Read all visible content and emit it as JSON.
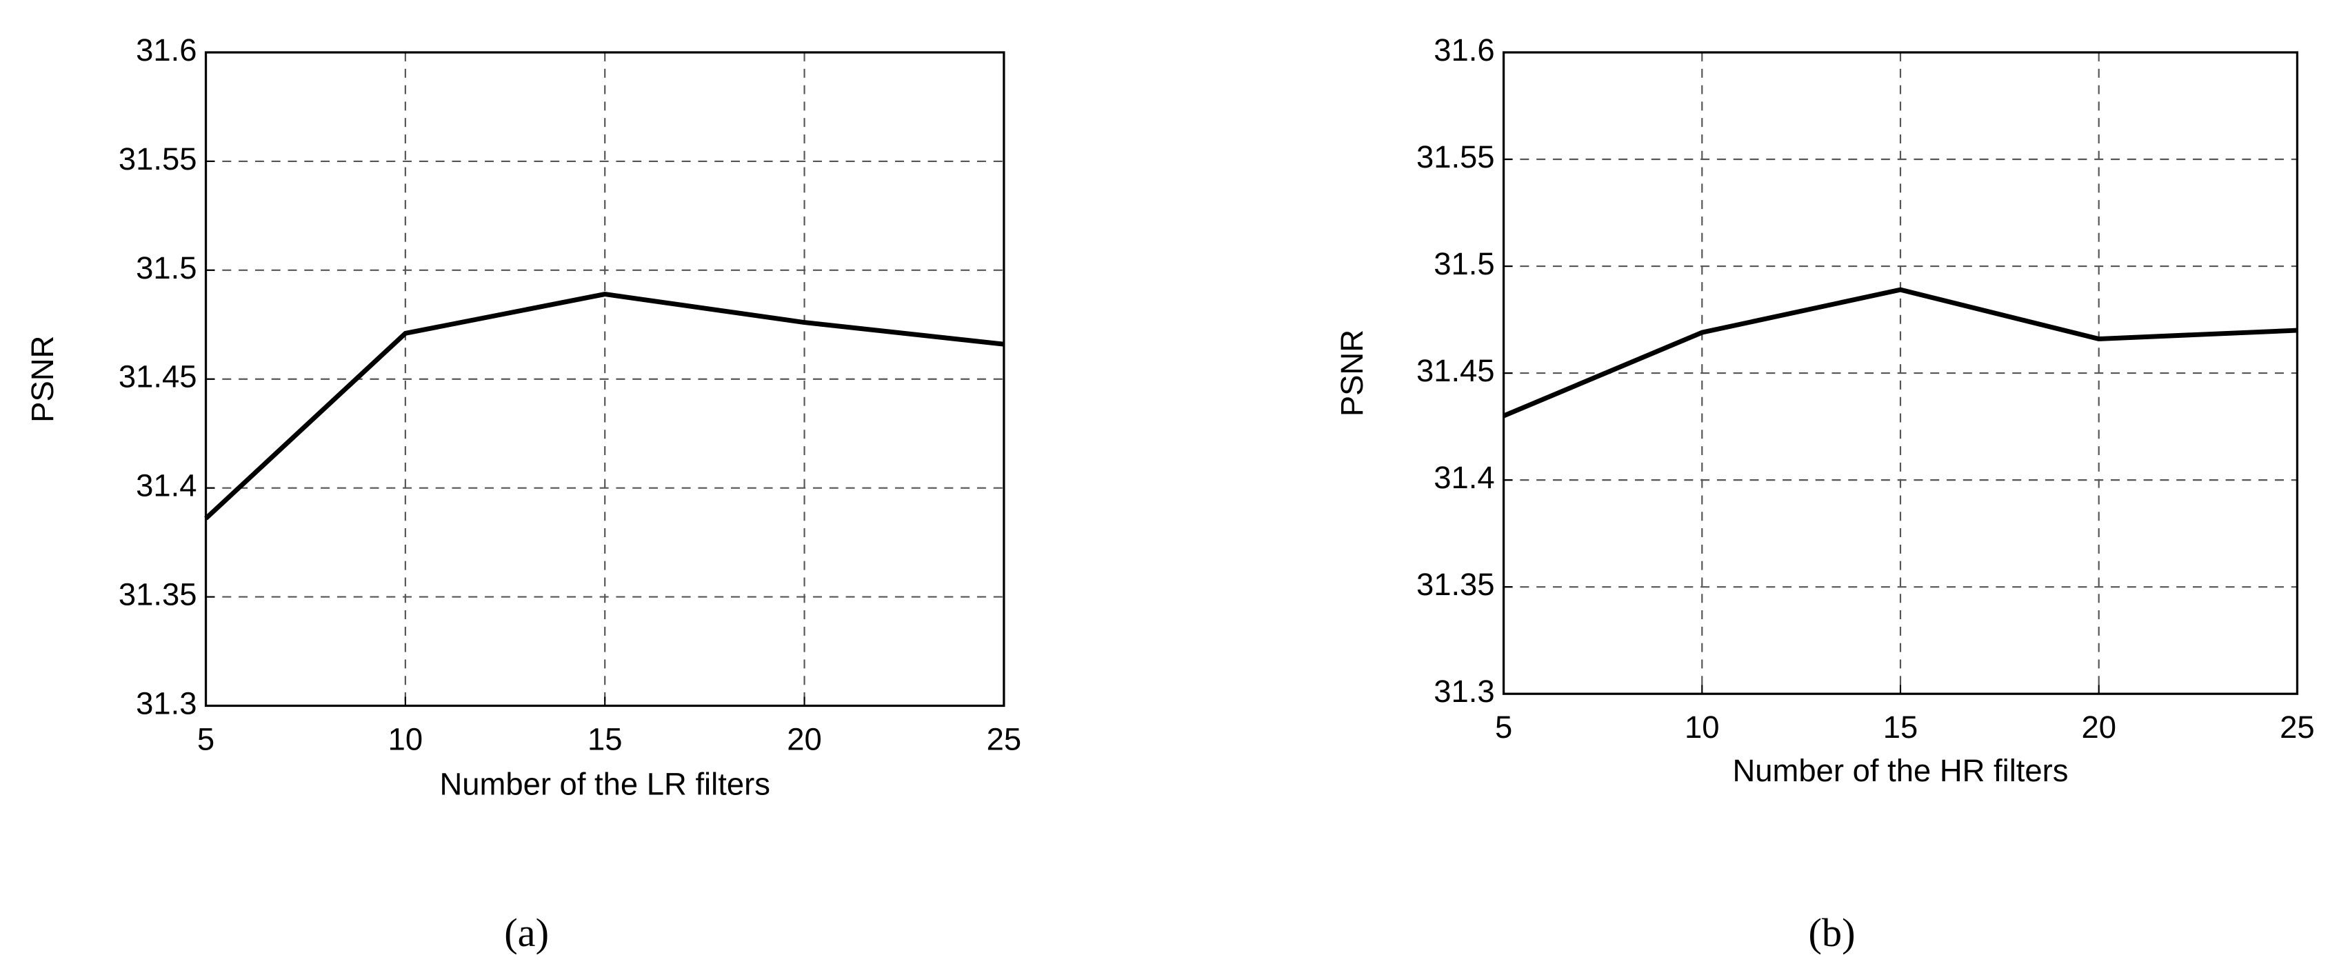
{
  "chart_data": [
    {
      "type": "line",
      "caption": "(a)",
      "xlabel": "Number of the LR filters",
      "ylabel": "PSNR",
      "x": [
        5,
        10,
        15,
        20,
        25
      ],
      "values": [
        31.386,
        31.471,
        31.489,
        31.476,
        31.466
      ],
      "color": "#000000",
      "xlim": [
        5,
        25
      ],
      "ylim": [
        31.3,
        31.6
      ],
      "xticks": [
        5,
        10,
        15,
        20,
        25
      ],
      "yticks": [
        31.3,
        31.35,
        31.4,
        31.45,
        31.5,
        31.55,
        31.6
      ],
      "grid": true
    },
    {
      "type": "line",
      "caption": "(b)",
      "xlabel": "Number of the HR filters",
      "ylabel": "PSNR",
      "x": [
        5,
        10,
        15,
        20,
        25
      ],
      "values": [
        31.43,
        31.469,
        31.489,
        31.466,
        31.47
      ],
      "color": "#000000",
      "xlim": [
        5,
        25
      ],
      "ylim": [
        31.3,
        31.6
      ],
      "xticks": [
        5,
        10,
        15,
        20,
        25
      ],
      "yticks": [
        31.3,
        31.35,
        31.4,
        31.45,
        31.5,
        31.55,
        31.6
      ],
      "grid": true
    }
  ]
}
